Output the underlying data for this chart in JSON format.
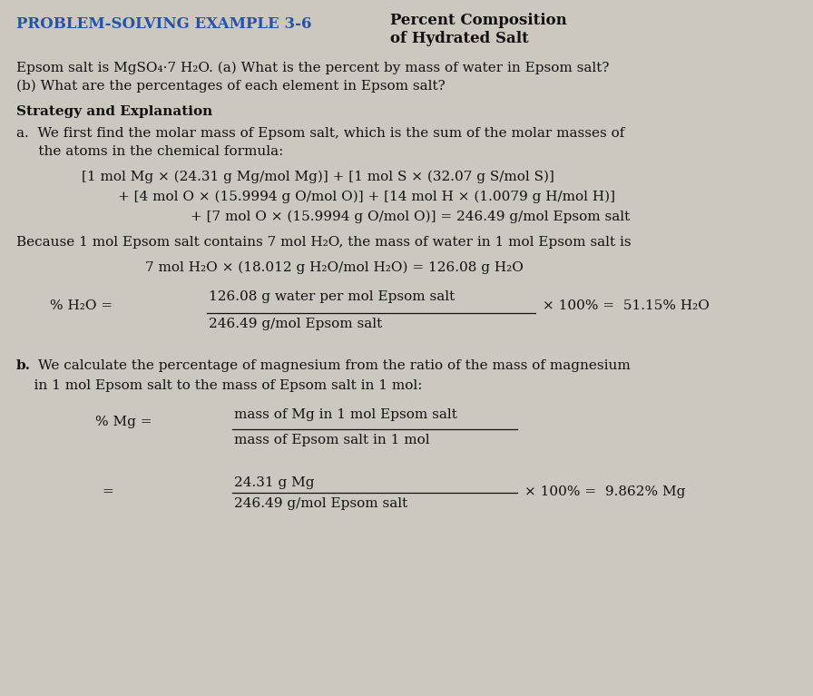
{
  "bg_color": "#ccc8c0",
  "title_left": "PROBLEM-SOLVING EXAMPLE 3-6",
  "title_right_line1": "Percent Composition",
  "title_right_line2": "of Hydrated Salt",
  "title_color": "#2255aa",
  "body_color": "#111111",
  "body_fontsize": 11.0,
  "title_fontsize": 12.0
}
